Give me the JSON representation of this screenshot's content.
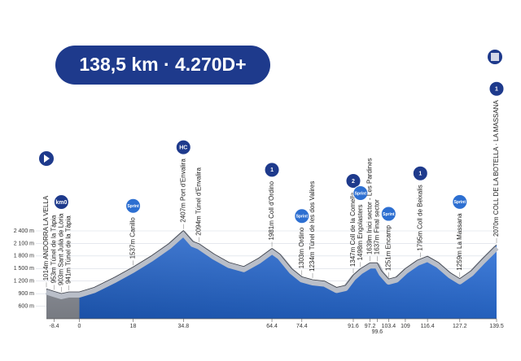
{
  "chart_data": {
    "type": "area",
    "title": "138,5 km · 4.270D+",
    "x": [
      -11,
      -8.4,
      -6,
      -3.5,
      0,
      5,
      12,
      18,
      24,
      30,
      34.8,
      38,
      40,
      45,
      50,
      55,
      60,
      64.4,
      67,
      71,
      74.4,
      78,
      82,
      86,
      89,
      91.6,
      94,
      97.2,
      99.6,
      101,
      103.4,
      106,
      109,
      113,
      116.4,
      120,
      124,
      127.2,
      131,
      135,
      139.5
    ],
    "values": [
      1014,
      953,
      903,
      941,
      941,
      1050,
      1300,
      1537,
      1800,
      2100,
      2407,
      2150,
      2094,
      1850,
      1650,
      1550,
      1750,
      1981,
      1850,
      1500,
      1303,
      1234,
      1200,
      1050,
      1100,
      1347,
      1498,
      1639,
      1637,
      1450,
      1251,
      1300,
      1500,
      1700,
      1795,
      1650,
      1400,
      1259,
      1450,
      1750,
      2070
    ],
    "color": "#1f5fc4",
    "xlim": [
      -11,
      139.5
    ],
    "ylim": [
      300,
      2400
    ],
    "xticks": [
      -8.4,
      0,
      18,
      34.8,
      64.4,
      74.4,
      91.6,
      97.2,
      99.6,
      103.4,
      109,
      116.4,
      127.2,
      139.5
    ],
    "yticks": [
      {
        "value": 2400,
        "label": "2 400 m"
      },
      {
        "value": 2100,
        "label": "2 100 m"
      },
      {
        "value": 1800,
        "label": "1 800 m"
      },
      {
        "value": 1500,
        "label": "1 500 m"
      },
      {
        "value": 1200,
        "label": "1 200 m"
      },
      {
        "value": 900,
        "label": "900 m"
      },
      {
        "value": 600,
        "label": "600 m"
      }
    ],
    "grid": true,
    "annotations": [
      {
        "x": -11,
        "text": "1014m ANDORRA LA VELLA"
      },
      {
        "x": -8.4,
        "text": "953m Túnel de la Tàpia"
      },
      {
        "x": -6,
        "text": "903m Sant Julià de Lòria",
        "icon": "km0"
      },
      {
        "x": -3.5,
        "text": "941m Túnel de la Tàpia"
      },
      {
        "x": 18,
        "text": "1537m Canillo",
        "icon": "Sprint"
      },
      {
        "x": 34.8,
        "text": "2407m Port d'Envalira",
        "icon": "HC"
      },
      {
        "x": 40,
        "text": "2094m Túnel d'Envalira"
      },
      {
        "x": 64.4,
        "text": "1981m Coll d'Ordino",
        "icon": "1"
      },
      {
        "x": 74.4,
        "text": "1303m Ordino",
        "icon": "Sprint"
      },
      {
        "x": 78,
        "text": "1234m Túnel de les dos Valires"
      },
      {
        "x": 91.6,
        "text": "1347m Coll de la Comella",
        "icon": "2"
      },
      {
        "x": 94,
        "text": "1498m Engolasters",
        "icon": "Sprint"
      },
      {
        "x": 97.2,
        "text": "1639m Inici sector - Les Pardines"
      },
      {
        "x": 99.6,
        "text": "1637m Final sector"
      },
      {
        "x": 103.4,
        "text": "1251m Encamp",
        "icon": "Sprint"
      },
      {
        "x": 114,
        "text": "1795m Coll de Beixalis",
        "icon": "1"
      },
      {
        "x": 127.2,
        "text": "1259m La Massana",
        "icon": "Sprint"
      },
      {
        "x": 139.5,
        "text": "2070m COLL DE LA BOTELLA · LA MASSANA",
        "icon": "1"
      }
    ]
  }
}
